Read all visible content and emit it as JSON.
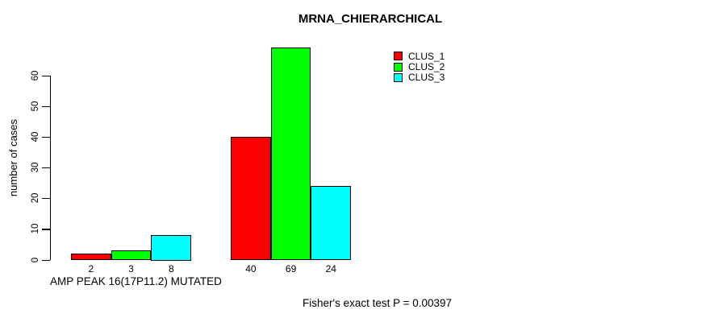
{
  "chart_data": {
    "type": "bar",
    "title": "MRNA_CHIERARCHICAL",
    "ylabel": "number of cases",
    "xlabel": "AMP PEAK 16(17P11.2) MUTATED",
    "footnote": "Fisher's exact test P = 0.00397",
    "series": [
      {
        "name": "CLUS_1",
        "color": "#ff0000"
      },
      {
        "name": "CLUS_2",
        "color": "#00ff00"
      },
      {
        "name": "CLUS_3",
        "color": "#00ffff"
      }
    ],
    "groups": [
      {
        "values": [
          2,
          3,
          8
        ],
        "bar_labels": [
          "2",
          "3",
          "8"
        ]
      },
      {
        "values": [
          40,
          69,
          24
        ],
        "bar_labels": [
          "40",
          "69",
          "24"
        ]
      }
    ],
    "yticks": [
      0,
      10,
      20,
      30,
      40,
      50,
      60
    ],
    "ylim": [
      0,
      69
    ],
    "grid": false,
    "legend_position": "top-right",
    "bar_border_color": "#000000",
    "axis_color": "#000000",
    "background": "#ffffff"
  }
}
